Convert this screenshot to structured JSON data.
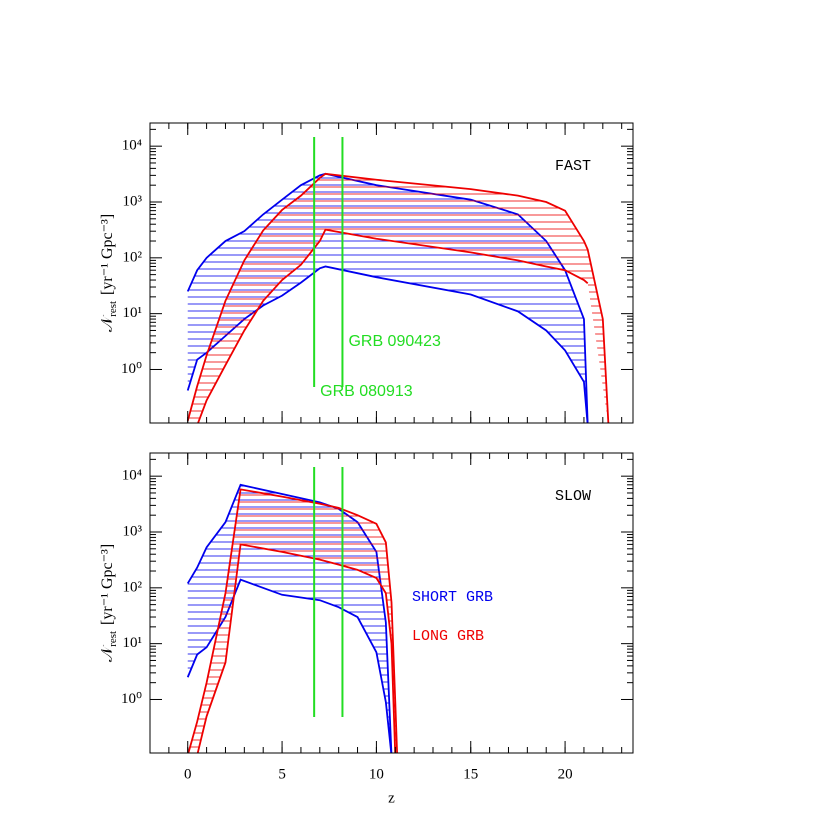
{
  "chart_data": [
    {
      "type": "band",
      "annotation": "FAST",
      "yscale": "log",
      "xlim": [
        -2,
        23.6
      ],
      "ylim": [
        0.11,
        26000
      ],
      "xticks": [
        0,
        5,
        10,
        15,
        20
      ],
      "show_xtick_labels": false,
      "yticks": [
        {
          "value": 1,
          "label": "10⁰"
        },
        {
          "value": 10,
          "label": "10¹"
        },
        {
          "value": 100,
          "label": "10²"
        },
        {
          "value": 1000,
          "label": "10³"
        },
        {
          "value": 10000,
          "label": "10⁴"
        }
      ],
      "ylabel": {
        "symbol": "𝒩",
        "subscript": "rest",
        "unit": "[yr⁻¹ Gpc⁻³]"
      },
      "markers": [
        {
          "x": 6.7,
          "label": "GRB 080913",
          "color": "#22dd22"
        },
        {
          "x": 8.2,
          "label": "GRB 090423",
          "color": "#22dd22"
        }
      ],
      "series": [
        {
          "color": "#0000ee",
          "x": [
            0,
            0.5,
            1,
            2,
            3,
            4,
            5,
            6,
            7,
            7.3,
            10,
            15,
            17.5,
            19,
            20,
            21,
            21.2,
            22,
            22.3
          ],
          "upper": [
            25,
            60,
            100,
            200,
            300,
            600,
            1100,
            2000,
            3000,
            3200,
            2000,
            1100,
            600,
            200,
            60,
            8,
            0.1,
            null,
            null
          ],
          "lower": [
            0.42,
            1.5,
            2,
            4,
            8,
            14,
            21,
            36,
            65,
            70,
            45,
            22,
            11,
            5,
            2.2,
            0.6,
            0.1,
            null,
            null
          ]
        },
        {
          "color": "#ee0000",
          "x": [
            0,
            0.5,
            1,
            2,
            3,
            4,
            5,
            6,
            7,
            7.3,
            10,
            15,
            17.5,
            19,
            20,
            21,
            21.2,
            22,
            22.3
          ],
          "upper": [
            0.12,
            0.5,
            1.8,
            17,
            90,
            310,
            720,
            1300,
            2700,
            3200,
            2500,
            1700,
            1300,
            1000,
            700,
            200,
            140,
            8,
            0.1
          ],
          "lower": [
            null,
            0.1,
            0.28,
            1.2,
            5,
            17,
            40,
            75,
            200,
            320,
            220,
            125,
            90,
            70,
            60,
            40,
            35,
            null,
            null
          ]
        }
      ]
    },
    {
      "type": "band",
      "annotation": "SLOW",
      "yscale": "log",
      "xlim": [
        -2,
        23.6
      ],
      "ylim": [
        0.11,
        26000
      ],
      "xticks": [
        0,
        5,
        10,
        15,
        20
      ],
      "show_xtick_labels": true,
      "xlabel": "z",
      "yticks": [
        {
          "value": 1,
          "label": "10⁰"
        },
        {
          "value": 10,
          "label": "10¹"
        },
        {
          "value": 100,
          "label": "10²"
        },
        {
          "value": 1000,
          "label": "10³"
        },
        {
          "value": 10000,
          "label": "10⁴"
        }
      ],
      "ylabel": {
        "symbol": "𝒩",
        "subscript": "rest",
        "unit": "[yr⁻¹ Gpc⁻³]"
      },
      "markers": [
        {
          "x": 6.7,
          "color": "#22dd22"
        },
        {
          "x": 8.2,
          "color": "#22dd22"
        }
      ],
      "legend": "right",
      "series": [
        {
          "name": "SHORT GRB",
          "color": "#0000ee",
          "x": [
            0,
            0.5,
            1,
            2,
            2.8,
            5,
            7,
            8,
            9,
            10,
            10.5,
            10.8,
            11,
            11.1
          ],
          "upper": [
            120,
            230,
            530,
            1500,
            7000,
            4800,
            3400,
            2600,
            1500,
            440,
            24,
            0.1,
            null,
            null
          ],
          "lower": [
            2.5,
            6.4,
            8.6,
            30,
            140,
            75,
            60,
            45,
            30,
            7,
            0.9,
            0.1,
            null,
            null
          ]
        },
        {
          "name": "LONG GRB",
          "color": "#ee0000",
          "x": [
            0,
            0.5,
            1,
            2,
            2.8,
            5,
            7,
            8,
            9,
            10,
            10.5,
            10.8,
            11,
            11.1
          ],
          "upper": [
            0.1,
            0.4,
            2,
            80,
            5800,
            4300,
            3200,
            2700,
            2000,
            1400,
            650,
            55,
            0.9,
            0.1
          ],
          "lower": [
            null,
            0.1,
            0.5,
            4.6,
            600,
            440,
            320,
            260,
            210,
            150,
            80,
            10,
            0.1,
            null
          ]
        }
      ]
    }
  ]
}
